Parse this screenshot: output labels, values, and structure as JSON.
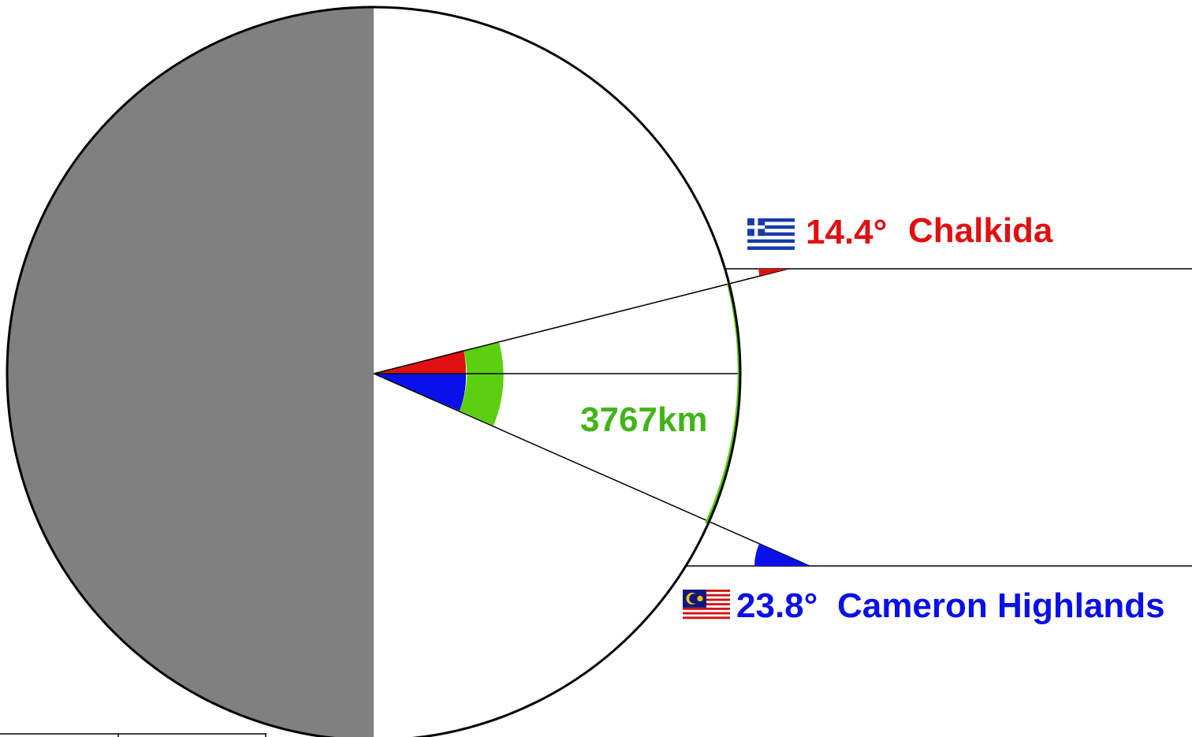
{
  "title": "",
  "colors": {
    "background": "#ffffff",
    "night_side": "#808080",
    "outline": "#000000",
    "chalkida": "#e01010",
    "cameron": "#0a10e8",
    "arc": "#5ccf10"
  },
  "arc": {
    "label": "3767km"
  },
  "locations": [
    {
      "flag": "greece-flag-icon",
      "angle_label": "14.4°",
      "name": "Chalkida",
      "color": "#e01010"
    },
    {
      "flag": "malaysia-flag-icon",
      "angle_label": "23.8°",
      "name": "Cameron Highlands",
      "color": "#0a10e8"
    }
  ]
}
